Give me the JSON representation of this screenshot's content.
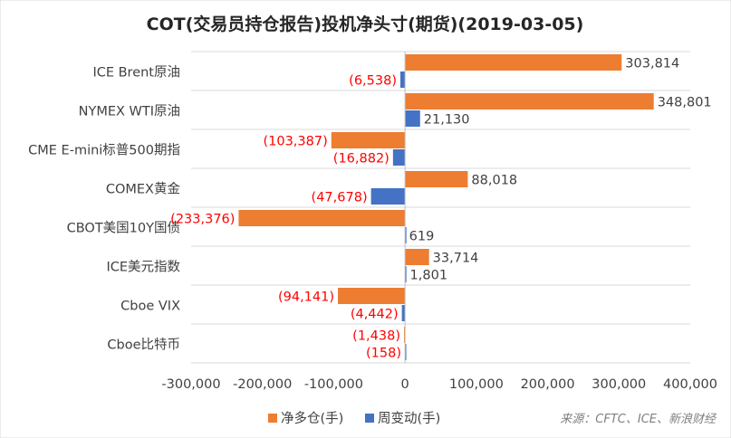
{
  "chart_data": {
    "type": "bar",
    "orientation": "horizontal",
    "title": "COT(交易员持仓报告)投机净头寸(期货)(2019-03-05)",
    "categories": [
      "ICE Brent原油",
      "NYMEX WTI原油",
      "CME E-mini标普500期指",
      "COMEX黄金",
      "CBOT美国10Y国债",
      "ICE美元指数",
      "Cboe VIX",
      "Cboe比特币"
    ],
    "series": [
      {
        "name": "净多仓(手)",
        "color": "#ED7D31",
        "values": [
          303814,
          348801,
          -103387,
          88018,
          -233376,
          33714,
          -94141,
          -1438
        ],
        "labels": [
          "303,814",
          "348,801",
          "(103,387)",
          "88,018",
          "(233,376)",
          "33,714",
          "(94,141)",
          "(1,438)"
        ]
      },
      {
        "name": "周变动(手)",
        "color": "#4472C4",
        "values": [
          -6538,
          21130,
          -16882,
          -47678,
          619,
          1801,
          -4442,
          -158
        ],
        "labels": [
          "(6,538)",
          "21,130",
          "(16,882)",
          "(47,678)",
          "619",
          "1,801",
          "(4,442)",
          "(158)"
        ]
      }
    ],
    "xlim": [
      -300000,
      400000
    ],
    "x_ticks": [
      -300000,
      -200000,
      -100000,
      0,
      100000,
      200000,
      300000,
      400000
    ],
    "x_tick_labels": [
      "-300,000",
      "-200,000",
      "-100,000",
      "0",
      "100,000",
      "200,000",
      "300,000",
      "400,000"
    ],
    "negative_label_color": "#FF0000",
    "positive_label_color": "#404040",
    "legend_position": "bottom",
    "grid": "horizontal separators between categories",
    "source": "来源：CFTC、ICE、新浪财经"
  }
}
